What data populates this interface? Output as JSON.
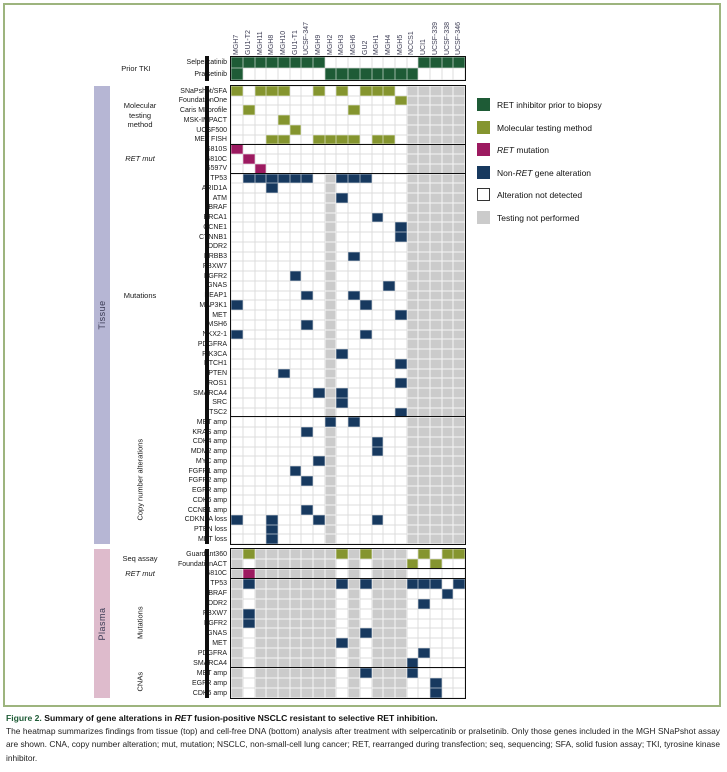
{
  "figure": {
    "caption_title_parts": [
      {
        "text": "Figure 2.",
        "style": "fignum"
      },
      {
        "text": " Summary of gene alterations in ",
        "style": "plain"
      },
      {
        "text": "RET",
        "style": "italic"
      },
      {
        "text": " fusion-positive NSCLC resistant to selective RET inhibition.",
        "style": "plain"
      }
    ],
    "caption_body": "The heatmap summarizes findings from tissue (top) and cell-free DNA (bottom) analysis after treatment with selpercatinib or pralsetinib. Only those genes included in the MGH SNaPshot assay are shown. CNA, copy number alteration; mut, mutation; NSCLC, non-small-cell lung cancer; RET, rearranged during transfection; seq, sequencing; SFA, solid fusion assay; TKI, tyrosine kinase inhibitor."
  },
  "colors": {
    "green": "#1e5b36",
    "olive": "#85952f",
    "magenta": "#9c1a60",
    "navy": "#17395f",
    "gray": "#cbcbcb",
    "white": "#ffffff",
    "tissue_bar": "#b6b6d4",
    "plasma_bar": "#debbcc"
  },
  "legend": [
    {
      "swatch": "green",
      "parts": [
        {
          "text": "RET inhibitor prior to biopsy"
        }
      ]
    },
    {
      "swatch": "olive",
      "parts": [
        {
          "text": "Molecular testing method"
        }
      ]
    },
    {
      "swatch": "magenta",
      "parts": [
        {
          "text": "RET",
          "italic": true
        },
        {
          "text": " mutation"
        }
      ]
    },
    {
      "swatch": "navy",
      "parts": [
        {
          "text": "Non-"
        },
        {
          "text": "RET",
          "italic": true
        },
        {
          "text": " gene alteration"
        }
      ]
    },
    {
      "swatch": "white",
      "parts": [
        {
          "text": "Alteration not detected"
        }
      ]
    },
    {
      "swatch": "gray",
      "parts": [
        {
          "text": "Testing not performed"
        }
      ]
    }
  ],
  "chart_data": {
    "type": "heatmap",
    "columns": [
      "MGH7",
      "GU1-T2",
      "MGH11",
      "MGH8",
      "MGH10",
      "GU1-T1",
      "UCSF-347",
      "MGH9",
      "MGH2",
      "MGH3",
      "MGH6",
      "GU2",
      "MGH1",
      "MGH4",
      "MGH5",
      "NCCS1",
      "UCI1",
      "UCSF-339",
      "UCSF-338",
      "UCSF-346"
    ],
    "prior_tki": {
      "section": "Prior TKI",
      "color": "green",
      "rows": [
        {
          "label": "Selpercatinib",
          "filled": [
            1,
            2,
            3,
            4,
            5,
            6,
            7,
            8,
            17,
            18,
            19,
            20
          ]
        },
        {
          "label": "Pralsetinib",
          "filled": [
            1,
            9,
            10,
            11,
            12,
            13,
            14,
            15,
            16
          ]
        }
      ]
    },
    "tissue_label": "Tissue",
    "plasma_label": "Plasma",
    "tissue_blocks": [
      {
        "section": "Molecular\ntesting\nmethod",
        "orient": "h",
        "color": "olive",
        "italic": false,
        "gray": [
          16,
          17,
          18,
          19,
          20
        ],
        "rows": [
          {
            "label": "SNaPshot/SFA",
            "filled": [
              1,
              3,
              4,
              5,
              8,
              10,
              12,
              13,
              14
            ]
          },
          {
            "label": "FoundationOne",
            "filled": [
              15
            ]
          },
          {
            "label": "Caris MI profile",
            "filled": [
              2,
              11
            ]
          },
          {
            "label": "MSK-IMPACT",
            "filled": [
              5
            ]
          },
          {
            "label": "UCSF500",
            "filled": [
              6
            ]
          },
          {
            "label": "MET FISH",
            "filled": [
              4,
              5,
              8,
              9,
              10,
              11,
              13,
              14
            ]
          }
        ]
      },
      {
        "section": "RET mut",
        "orient": "h",
        "color": "magenta",
        "italic": true,
        "gray": [
          16,
          17,
          18,
          19,
          20
        ],
        "rows": [
          {
            "label": "G810S",
            "filled": [
              1
            ]
          },
          {
            "label": "G810C",
            "filled": [
              2
            ]
          },
          {
            "label": "G597V",
            "filled": [
              3
            ]
          }
        ]
      },
      {
        "section": "Mutations",
        "orient": "h",
        "color": "navy",
        "italic": false,
        "gray": [
          9,
          16,
          17,
          18,
          19,
          20
        ],
        "rows": [
          {
            "label": "TP53",
            "filled": [
              2,
              3,
              4,
              5,
              6,
              7,
              10,
              11,
              12
            ]
          },
          {
            "label": "ARID1A",
            "filled": [
              4
            ]
          },
          {
            "label": "ATM",
            "filled": [
              10
            ]
          },
          {
            "label": "BRAF",
            "filled": []
          },
          {
            "label": "BRCA1",
            "filled": [
              13
            ]
          },
          {
            "label": "CCNE1",
            "filled": [
              15
            ]
          },
          {
            "label": "CTNNB1",
            "filled": [
              15
            ]
          },
          {
            "label": "DDR2",
            "filled": []
          },
          {
            "label": "ERBB3",
            "filled": [
              11
            ]
          },
          {
            "label": "FBXW7",
            "filled": []
          },
          {
            "label": "FGFR2",
            "filled": [
              6
            ]
          },
          {
            "label": "GNAS",
            "filled": [
              14
            ]
          },
          {
            "label": "KEAP1",
            "filled": [
              7,
              11
            ]
          },
          {
            "label": "MAP3K1",
            "filled": [
              1,
              12
            ]
          },
          {
            "label": "MET",
            "filled": [
              15
            ]
          },
          {
            "label": "MSH6",
            "filled": [
              7
            ]
          },
          {
            "label": "NKX2-1",
            "filled": [
              1,
              12
            ]
          },
          {
            "label": "PDGFRA",
            "filled": []
          },
          {
            "label": "PIK3CA",
            "filled": [
              10
            ]
          },
          {
            "label": "PTCH1",
            "filled": [
              15
            ]
          },
          {
            "label": "PTEN",
            "filled": [
              5
            ]
          },
          {
            "label": "ROS1",
            "filled": [
              15
            ]
          },
          {
            "label": "SMARCA4",
            "filled": [
              8,
              10
            ]
          },
          {
            "label": "SRC",
            "filled": [
              10
            ]
          },
          {
            "label": "TSC2",
            "filled": [
              15
            ]
          }
        ]
      },
      {
        "section": "Copy number alterations",
        "orient": "v",
        "color": "navy",
        "italic": false,
        "gray": [
          9,
          16,
          17,
          18,
          19,
          20
        ],
        "rows": [
          {
            "label": "MET amp",
            "filled": [
              9,
              11
            ]
          },
          {
            "label": "KRAS amp",
            "filled": [
              7
            ]
          },
          {
            "label": "CDK4 amp",
            "filled": [
              13
            ]
          },
          {
            "label": "MDM2 amp",
            "filled": [
              13
            ]
          },
          {
            "label": "MYC amp",
            "filled": [
              8
            ]
          },
          {
            "label": "FGFR1 amp",
            "filled": [
              6
            ]
          },
          {
            "label": "FGFR2 amp",
            "filled": [
              7
            ]
          },
          {
            "label": "EGFR amp",
            "filled": []
          },
          {
            "label": "CDK6 amp",
            "filled": []
          },
          {
            "label": "CCNE1 amp",
            "filled": [
              7
            ]
          },
          {
            "label": "CDKN2A loss",
            "filled": [
              1,
              4,
              8,
              13
            ]
          },
          {
            "label": "PTEN loss",
            "filled": [
              4
            ]
          },
          {
            "label": "MET loss",
            "filled": [
              4
            ]
          }
        ]
      }
    ],
    "plasma_blocks": [
      {
        "section": "Seq assay",
        "orient": "h",
        "color": "olive",
        "italic": false,
        "gray": [
          1,
          3,
          4,
          5,
          6,
          7,
          8,
          9,
          11,
          13,
          14,
          15
        ],
        "rows": [
          {
            "label": "Guardant360",
            "filled": [
              2,
              10,
              12,
              17,
              19,
              20
            ]
          },
          {
            "label": "FoundationACT",
            "filled": [
              16,
              18
            ]
          }
        ]
      },
      {
        "section": "RET mut",
        "orient": "h",
        "color": "magenta",
        "italic": true,
        "gray": [
          1,
          3,
          4,
          5,
          6,
          7,
          8,
          9,
          11,
          13,
          14,
          15
        ],
        "rows": [
          {
            "label": "G810C",
            "filled": [
              2
            ]
          }
        ]
      },
      {
        "section": "Mutations",
        "orient": "v",
        "color": "navy",
        "italic": false,
        "gray": [
          1,
          3,
          4,
          5,
          6,
          7,
          8,
          9,
          11,
          13,
          14,
          15
        ],
        "rows": [
          {
            "label": "TP53",
            "filled": [
              2,
              10,
              12,
              16,
              17,
              18,
              20
            ]
          },
          {
            "label": "BRAF",
            "filled": [
              19
            ]
          },
          {
            "label": "DDR2",
            "filled": [
              17
            ]
          },
          {
            "label": "FBXW7",
            "filled": [
              2
            ]
          },
          {
            "label": "FGFR2",
            "filled": [
              2
            ]
          },
          {
            "label": "GNAS",
            "filled": [
              12
            ]
          },
          {
            "label": "MET",
            "filled": [
              10
            ]
          },
          {
            "label": "PDGFRA",
            "filled": [
              17
            ]
          },
          {
            "label": "SMARCA4",
            "filled": [
              16
            ]
          }
        ]
      },
      {
        "section": "CNAs",
        "orient": "v",
        "color": "navy",
        "italic": false,
        "gray": [
          1,
          3,
          4,
          5,
          6,
          7,
          8,
          9,
          11,
          13,
          14,
          15
        ],
        "rows": [
          {
            "label": "MET amp",
            "filled": [
              12,
              16
            ]
          },
          {
            "label": "EGFR amp",
            "filled": [
              18
            ]
          },
          {
            "label": "CDK6 amp",
            "filled": [
              18
            ]
          }
        ]
      }
    ]
  }
}
